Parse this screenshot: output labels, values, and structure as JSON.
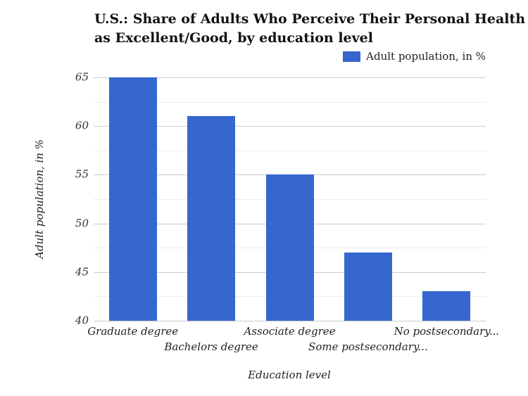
{
  "title": {
    "lines": [
      "U.S.: Share of Adults Who Perceive Their Personal Health",
      "as Excellent/Good, by education level"
    ]
  },
  "legend": {
    "label": "Adult population, in %",
    "swatch_color": "#3667cf"
  },
  "chart_data": {
    "type": "bar",
    "title": "U.S.: Share of Adults Who Perceive Their Personal Health as Excellent/Good, by education level",
    "categories": [
      "Graduate degree",
      "Bachelors degree",
      "Associate degree",
      "Some postsecondary...",
      "No postsecondary..."
    ],
    "series": [
      {
        "name": "Adult population, in %",
        "values": [
          65,
          61,
          55,
          47,
          43
        ]
      }
    ],
    "xlabel": "Education level",
    "ylabel": "Adult population, in %",
    "ylim": [
      40,
      65
    ],
    "ytick_step": 5,
    "yticks": [
      40,
      45,
      50,
      55,
      60,
      65
    ],
    "minor_gridlines": true,
    "grid": true,
    "legend_position": "top-right",
    "bar_color": "#3667cf",
    "major_grid_color": "#cccccc",
    "minor_grid_color": "#ececec",
    "x_labels_staggered": true
  }
}
